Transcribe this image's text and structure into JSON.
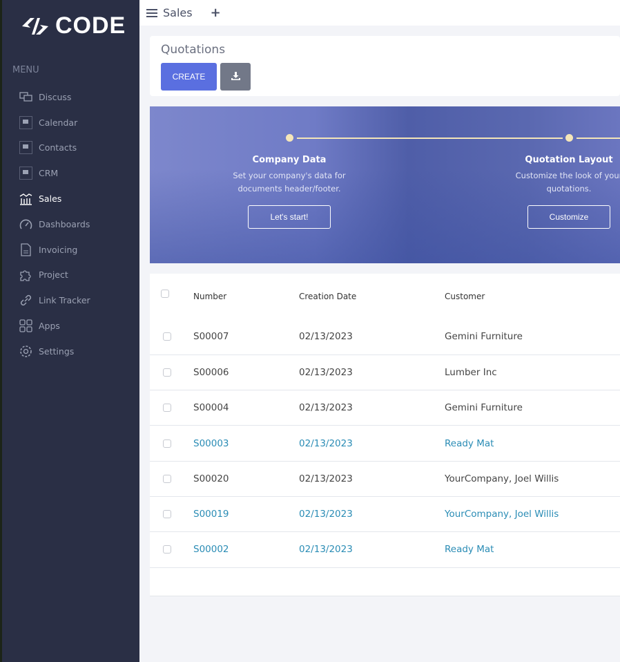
{
  "brand": {
    "name": "CODE"
  },
  "sidebar": {
    "heading": "MENU",
    "items": [
      {
        "label": "Discuss",
        "icon": "chat-icon"
      },
      {
        "label": "Calendar",
        "icon": "placeholder-icon"
      },
      {
        "label": "Contacts",
        "icon": "placeholder-icon"
      },
      {
        "label": "CRM",
        "icon": "placeholder-icon"
      },
      {
        "label": "Sales",
        "icon": "chart-icon",
        "active": true
      },
      {
        "label": "Dashboards",
        "icon": "speedometer-icon"
      },
      {
        "label": "Invoicing",
        "icon": "invoice-icon"
      },
      {
        "label": "Project",
        "icon": "puzzle-icon"
      },
      {
        "label": "Link Tracker",
        "icon": "link-icon"
      },
      {
        "label": "Apps",
        "icon": "grid-icon"
      },
      {
        "label": "Settings",
        "icon": "gear-icon"
      }
    ]
  },
  "topbar": {
    "title": "Sales",
    "plus": "+"
  },
  "control": {
    "title": "Quotations",
    "create_label": "CREATE"
  },
  "banner": {
    "steps": [
      {
        "title": "Company Data",
        "text1": "Set your company's data for",
        "text2": "documents header/footer.",
        "button": "Let's start!"
      },
      {
        "title": "Quotation Layout",
        "text1": "Customize the look of your",
        "text2": "quotations.",
        "button": "Customize"
      }
    ],
    "accent": "#f5e6b8"
  },
  "table": {
    "columns": [
      "Number",
      "Creation Date",
      "Customer"
    ],
    "rows": [
      {
        "number": "S00007",
        "date": "02/13/2023",
        "customer": "Gemini Furniture",
        "link": false
      },
      {
        "number": "S00006",
        "date": "02/13/2023",
        "customer": "Lumber Inc",
        "link": false
      },
      {
        "number": "S00004",
        "date": "02/13/2023",
        "customer": "Gemini Furniture",
        "link": false
      },
      {
        "number": "S00003",
        "date": "02/13/2023",
        "customer": "Ready Mat",
        "link": true
      },
      {
        "number": "S00020",
        "date": "02/13/2023",
        "customer": "YourCompany, Joel Willis",
        "link": false
      },
      {
        "number": "S00019",
        "date": "02/13/2023",
        "customer": "YourCompany, Joel Willis",
        "link": true
      },
      {
        "number": "S00002",
        "date": "02/13/2023",
        "customer": "Ready Mat",
        "link": true
      }
    ]
  },
  "colors": {
    "sidebar": "#2a2f45",
    "primary": "#5a6fe0",
    "link": "#2a8cb5"
  }
}
